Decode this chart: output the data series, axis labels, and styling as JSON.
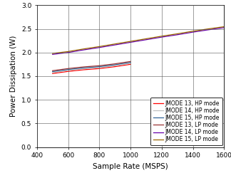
{
  "xlabel": "Sample Rate (MSPS)",
  "ylabel": "Power Dissipation (W)",
  "xlim": [
    400,
    1600
  ],
  "ylim": [
    0,
    3
  ],
  "xticks": [
    400,
    600,
    800,
    1000,
    1200,
    1400,
    1600
  ],
  "yticks": [
    0,
    0.5,
    1,
    1.5,
    2,
    2.5,
    3
  ],
  "lines": [
    {
      "label": "JMODE 13, HP mode",
      "color": "#ff0000",
      "x": [
        500,
        600,
        700,
        800,
        900,
        1000
      ],
      "y": [
        1.555,
        1.6,
        1.635,
        1.66,
        1.7,
        1.75
      ]
    },
    {
      "label": "JMODE 14, HP mode",
      "color": "#c0c0c0",
      "x": [
        500,
        600,
        700,
        800,
        900,
        1000
      ],
      "y": [
        1.575,
        1.62,
        1.655,
        1.68,
        1.72,
        1.77
      ]
    },
    {
      "label": "JMODE 15, HP mode",
      "color": "#336699",
      "x": [
        500,
        600,
        700,
        800,
        900,
        1000
      ],
      "y": [
        1.595,
        1.64,
        1.675,
        1.7,
        1.74,
        1.79
      ]
    },
    {
      "label": "JMODE 13, LP mode",
      "color": "#993333",
      "x": [
        500,
        600,
        700,
        800,
        900,
        1000
      ],
      "y": [
        1.615,
        1.66,
        1.695,
        1.72,
        1.76,
        1.81
      ]
    },
    {
      "label": "JMODE 14, LP mode",
      "color": "#6600aa",
      "x": [
        500,
        600,
        700,
        800,
        900,
        1000,
        1100,
        1200,
        1300,
        1400,
        1500,
        1600
      ],
      "y": [
        1.96,
        2.0,
        2.055,
        2.105,
        2.16,
        2.215,
        2.27,
        2.325,
        2.375,
        2.43,
        2.48,
        2.525
      ]
    },
    {
      "label": "JMODE 15, LP mode",
      "color": "#996600",
      "x": [
        500,
        600,
        700,
        800,
        900,
        1000,
        1100,
        1200,
        1300,
        1400,
        1500,
        1600
      ],
      "y": [
        1.98,
        2.02,
        2.075,
        2.125,
        2.18,
        2.235,
        2.29,
        2.345,
        2.395,
        2.45,
        2.5,
        2.545
      ]
    }
  ],
  "legend_loc": "lower right",
  "grid_color": "#808080",
  "background_color": "#ffffff",
  "tick_fontsize": 6.5,
  "label_fontsize": 7.5,
  "legend_fontsize": 5.5
}
